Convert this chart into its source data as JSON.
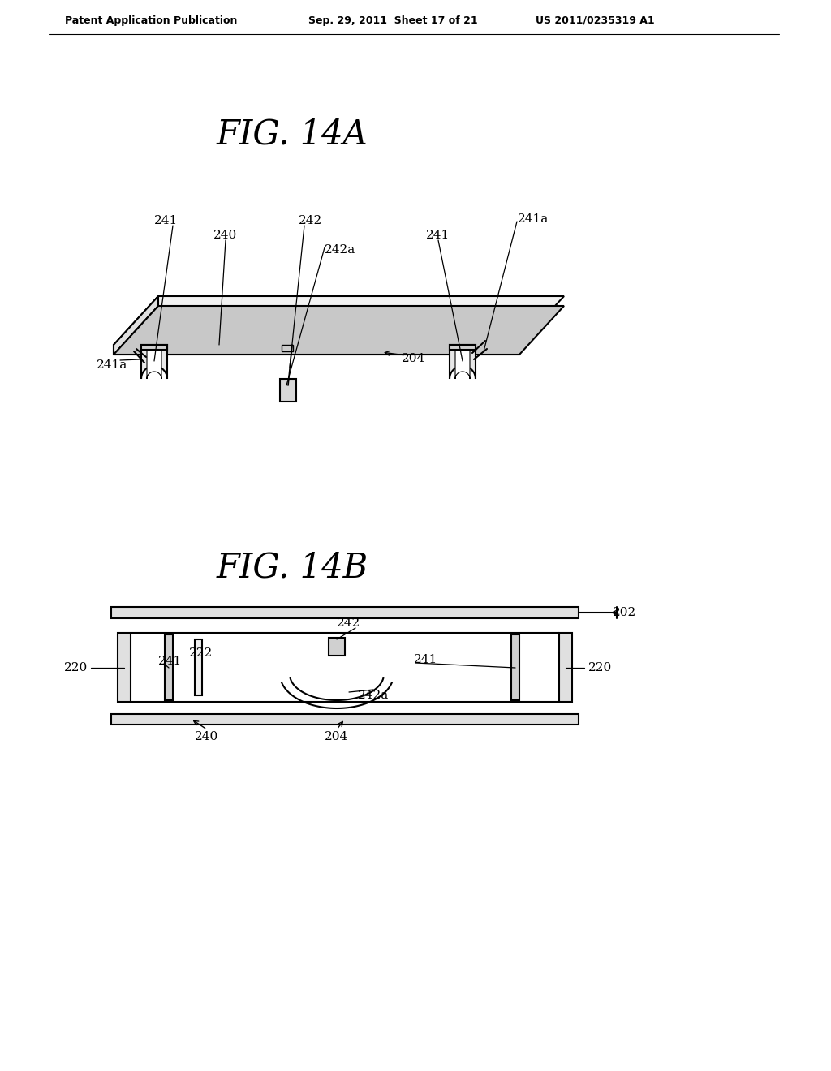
{
  "bg_color": "#ffffff",
  "text_color": "#000000",
  "line_color": "#000000",
  "header_left": "Patent Application Publication",
  "header_mid": "Sep. 29, 2011  Sheet 17 of 21",
  "header_right": "US 2011/0235319 A1",
  "fig14a_title": "FIG. 14A",
  "fig14b_title": "FIG. 14B"
}
